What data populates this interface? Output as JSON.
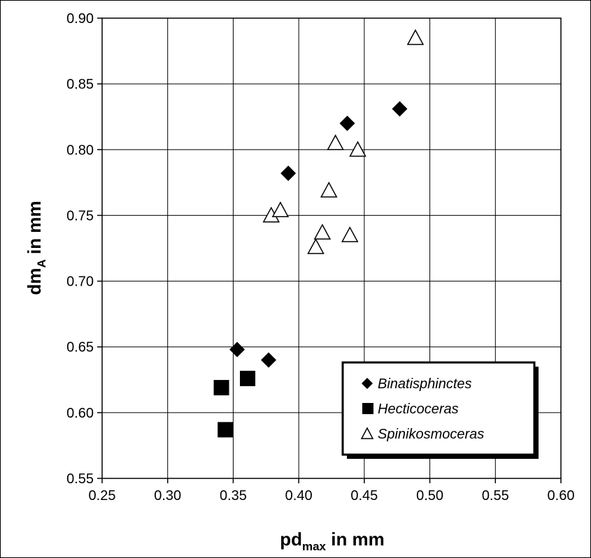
{
  "chart_data": {
    "type": "scatter",
    "xlabel_main": "pd",
    "xlabel_sub": "max",
    "xlabel_rest": " in mm",
    "ylabel_main": "dm",
    "ylabel_sub": "A",
    "ylabel_rest": " in mm",
    "xlim": [
      0.25,
      0.6
    ],
    "ylim": [
      0.55,
      0.9
    ],
    "x_ticks": [
      "0.25",
      "0.30",
      "0.35",
      "0.40",
      "0.45",
      "0.50",
      "0.55",
      "0.60"
    ],
    "y_ticks": [
      "0.55",
      "0.60",
      "0.65",
      "0.70",
      "0.75",
      "0.80",
      "0.85",
      "0.90"
    ],
    "grid": true,
    "legend_position": "bottom-right",
    "series": [
      {
        "name": "Binatisphinctes",
        "marker": "diamond-filled",
        "color": "#000000",
        "points": [
          [
            0.353,
            0.648
          ],
          [
            0.377,
            0.64
          ],
          [
            0.392,
            0.782
          ],
          [
            0.437,
            0.82
          ],
          [
            0.477,
            0.831
          ]
        ]
      },
      {
        "name": "Hecticoceras",
        "marker": "square-filled",
        "color": "#000000",
        "points": [
          [
            0.341,
            0.619
          ],
          [
            0.344,
            0.587
          ],
          [
            0.361,
            0.626
          ]
        ]
      },
      {
        "name": "Spinikosmoceras",
        "marker": "triangle-open",
        "color": "#000000",
        "points": [
          [
            0.379,
            0.75
          ],
          [
            0.386,
            0.754
          ],
          [
            0.413,
            0.726
          ],
          [
            0.418,
            0.737
          ],
          [
            0.423,
            0.769
          ],
          [
            0.428,
            0.805
          ],
          [
            0.439,
            0.735
          ],
          [
            0.445,
            0.8
          ],
          [
            0.489,
            0.885
          ]
        ]
      }
    ]
  }
}
